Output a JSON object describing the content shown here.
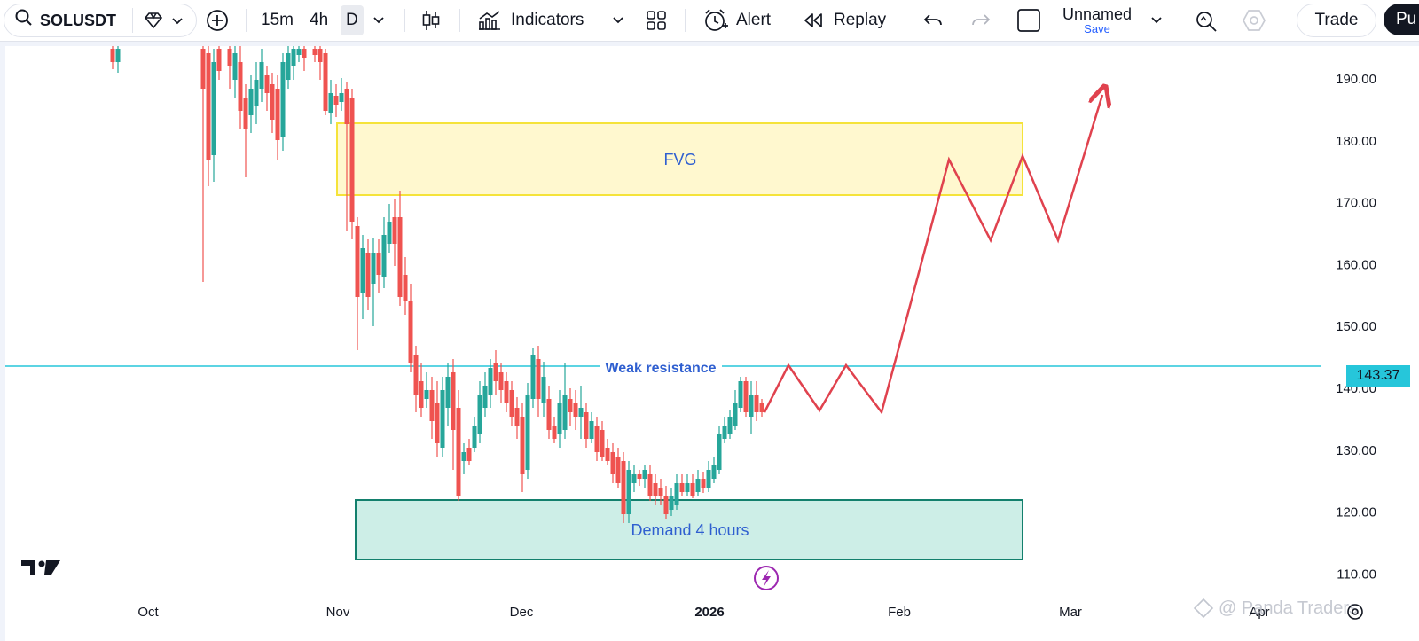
{
  "toolbar": {
    "symbol": "SOLUSDT",
    "intervals": [
      "15m",
      "4h",
      "D"
    ],
    "indicators_label": "Indicators",
    "alert_label": "Alert",
    "replay_label": "Replay",
    "layout_name": "Unnamed",
    "save_label": "Save",
    "trade_label": "Trade",
    "publish_label": "Pu"
  },
  "chart": {
    "price_labels": [
      "190.00",
      "180.00",
      "170.00",
      "160.00",
      "150.00",
      "140.00",
      "130.00",
      "120.00",
      "110.00"
    ],
    "time_labels": [
      "Oct",
      "Nov",
      "Dec",
      "2026",
      "Feb",
      "Mar",
      "Apr"
    ],
    "current_price": "143.37",
    "resistance_label": "Weak resistance",
    "fvg_label": "FVG",
    "demand_label": "Demand 4 hours",
    "watermark": "@ Panda Traders",
    "colors": {
      "up": "#26a69a",
      "down": "#ef5350",
      "fvg": "#fff8cf",
      "demand": "#cdeee7",
      "line": "#26c6da",
      "projection": "#e0424e"
    }
  }
}
